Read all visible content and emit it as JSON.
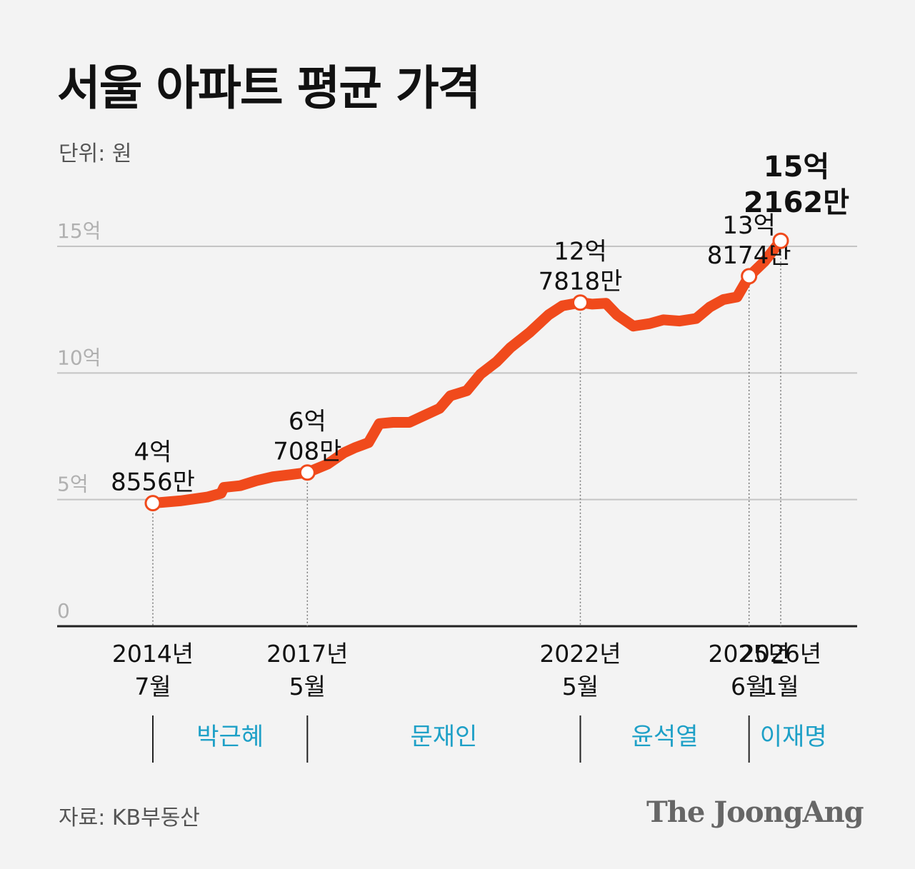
{
  "title": "서울 아파트 평균 가격",
  "unit": "단위: 원",
  "source": "자료: KB부동산",
  "logo": "The JoongAng",
  "chart_data": {
    "type": "line",
    "ylim": [
      0,
      15
    ],
    "yticks": [
      {
        "value": 0,
        "label": "0"
      },
      {
        "value": 5,
        "label": "5억"
      },
      {
        "value": 10,
        "label": "10억"
      },
      {
        "value": 15,
        "label": "15억"
      }
    ],
    "series_color": "#f04a1c",
    "series": [
      {
        "points": [
          {
            "x": 2014.5,
            "y": 4.86
          },
          {
            "x": 2015.0,
            "y": 4.95
          },
          {
            "x": 2015.5,
            "y": 5.1
          },
          {
            "x": 2015.75,
            "y": 5.25
          },
          {
            "x": 2015.8,
            "y": 5.48
          },
          {
            "x": 2016.1,
            "y": 5.55
          },
          {
            "x": 2016.4,
            "y": 5.75
          },
          {
            "x": 2016.7,
            "y": 5.9
          },
          {
            "x": 2017.0,
            "y": 5.98
          },
          {
            "x": 2017.33,
            "y": 6.07
          },
          {
            "x": 2017.7,
            "y": 6.4
          },
          {
            "x": 2018.0,
            "y": 6.85
          },
          {
            "x": 2018.2,
            "y": 7.05
          },
          {
            "x": 2018.45,
            "y": 7.25
          },
          {
            "x": 2018.65,
            "y": 8.0
          },
          {
            "x": 2018.9,
            "y": 8.05
          },
          {
            "x": 2019.2,
            "y": 8.05
          },
          {
            "x": 2019.45,
            "y": 8.3
          },
          {
            "x": 2019.75,
            "y": 8.6
          },
          {
            "x": 2019.95,
            "y": 9.1
          },
          {
            "x": 2020.25,
            "y": 9.3
          },
          {
            "x": 2020.5,
            "y": 9.95
          },
          {
            "x": 2020.8,
            "y": 10.45
          },
          {
            "x": 2021.05,
            "y": 11.0
          },
          {
            "x": 2021.4,
            "y": 11.6
          },
          {
            "x": 2021.75,
            "y": 12.3
          },
          {
            "x": 2022.0,
            "y": 12.65
          },
          {
            "x": 2022.33,
            "y": 12.78
          },
          {
            "x": 2022.55,
            "y": 12.72
          },
          {
            "x": 2022.8,
            "y": 12.75
          },
          {
            "x": 2023.0,
            "y": 12.3
          },
          {
            "x": 2023.3,
            "y": 11.85
          },
          {
            "x": 2023.6,
            "y": 11.95
          },
          {
            "x": 2023.85,
            "y": 12.1
          },
          {
            "x": 2024.15,
            "y": 12.05
          },
          {
            "x": 2024.45,
            "y": 12.15
          },
          {
            "x": 2024.7,
            "y": 12.6
          },
          {
            "x": 2024.95,
            "y": 12.9
          },
          {
            "x": 2025.2,
            "y": 13.0
          },
          {
            "x": 2025.42,
            "y": 13.82
          },
          {
            "x": 2025.7,
            "y": 14.4
          },
          {
            "x": 2026.0,
            "y": 15.22
          }
        ]
      }
    ],
    "highlights": [
      {
        "x": 2014.5,
        "y": 4.86,
        "line1": "4억",
        "line2": "8556만",
        "date1": "2014년",
        "date2": "7월"
      },
      {
        "x": 2017.33,
        "y": 6.07,
        "line1": "6억",
        "line2": "708만",
        "date1": "2017년",
        "date2": "5월"
      },
      {
        "x": 2022.33,
        "y": 12.78,
        "line1": "12억",
        "line2": "7818만",
        "date1": "2022년",
        "date2": "5월"
      },
      {
        "x": 2025.42,
        "y": 13.82,
        "line1": "13억",
        "line2": "8174만",
        "date1": "2025년",
        "date2": "6월"
      },
      {
        "x": 2026.0,
        "y": 15.22,
        "line1": "15억",
        "line2": "2162만",
        "date1": "2026년",
        "date2": "1월",
        "emphasis": true
      }
    ],
    "presidents": [
      {
        "name": "박근혜",
        "start": 2014.5,
        "end": 2017.33
      },
      {
        "name": "문재인",
        "start": 2017.33,
        "end": 2022.33
      },
      {
        "name": "윤석열",
        "start": 2022.33,
        "end": 2025.42
      },
      {
        "name": "이재명",
        "start": 2025.42,
        "end": 2026.0
      }
    ],
    "president_color": "#1ea0c7"
  }
}
